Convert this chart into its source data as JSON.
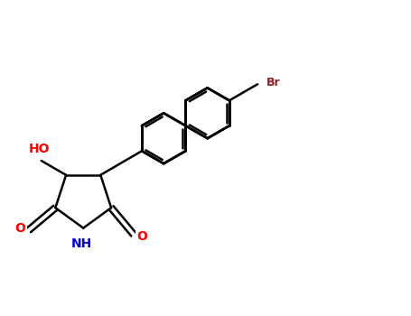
{
  "background_color": "#ffffff",
  "bond_color": "#000000",
  "atom_colors": {
    "O": "#ff0000",
    "N": "#0000cc",
    "Br": "#8b2020",
    "C": "#000000"
  },
  "bond_width": 1.8,
  "figsize": [
    4.55,
    3.5
  ],
  "dpi": 100,
  "xlim": [
    0,
    10
  ],
  "ylim": [
    0,
    7.7
  ]
}
